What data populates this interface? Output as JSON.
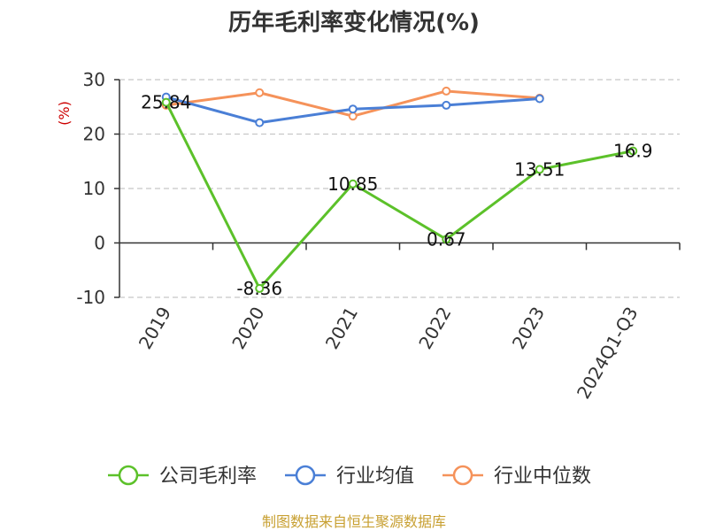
{
  "chart_data": {
    "type": "line",
    "title": "历年毛利率变化情况(%)",
    "ylabel": "(%)",
    "categories": [
      "2019",
      "2020",
      "2021",
      "2022",
      "2023",
      "2024Q1-Q3"
    ],
    "ylim": [
      -10,
      30
    ],
    "yticks": [
      30,
      20,
      10,
      0,
      -10
    ],
    "grid": true,
    "legend_position": "bottom",
    "series": [
      {
        "name": "公司毛利率",
        "color": "#5cc12a",
        "values": [
          25.84,
          -8.36,
          10.85,
          0.67,
          13.51,
          16.9
        ],
        "labels": [
          "25.84",
          "-8.36",
          "10.85",
          "0.67",
          "13.51",
          "16.9"
        ]
      },
      {
        "name": "行业均值",
        "color": "#4a7fd6",
        "values": [
          26.8,
          22.1,
          24.6,
          25.3,
          26.5,
          null
        ]
      },
      {
        "name": "行业中位数",
        "color": "#f5925a",
        "values": [
          25.3,
          27.6,
          23.3,
          27.9,
          26.6,
          null
        ]
      }
    ]
  },
  "source": "制图数据来自恒生聚源数据库"
}
